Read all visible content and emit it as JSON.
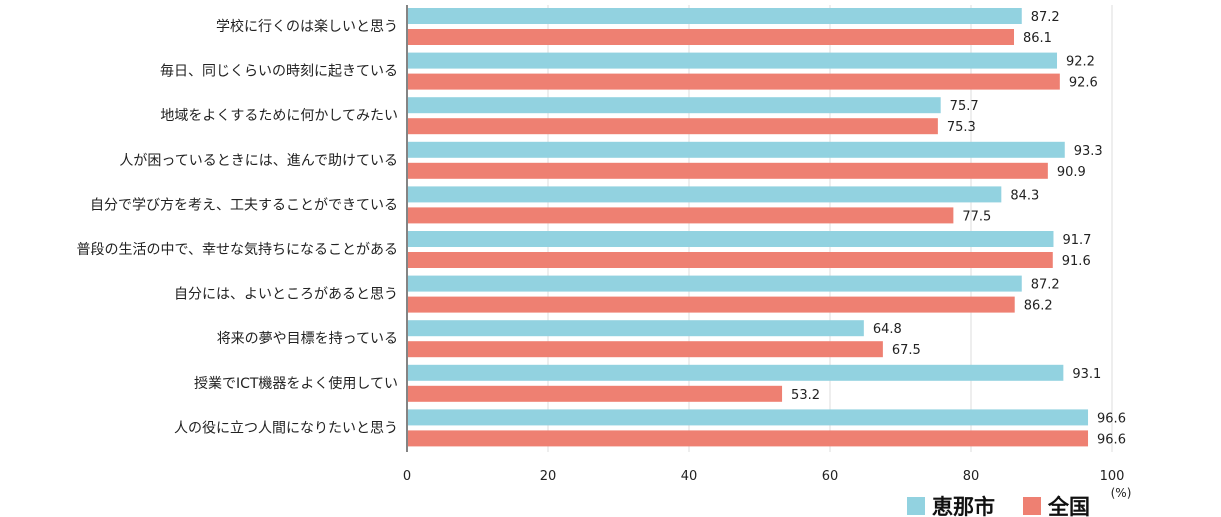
{
  "chart_data": {
    "type": "bar",
    "orientation": "horizontal",
    "categories": [
      "学校に行くのは楽しいと思う",
      "毎日、同じくらいの時刻に起きている",
      "地域をよくするために何かしてみたい",
      "人が困っているときには、進んで助けている",
      "自分で学び方を考え、工夫することができている",
      "普段の生活の中で、幸せな気持ちになることがある",
      "自分には、よいところがあると思う",
      "将来の夢や目標を持っている",
      "授業でICT機器をよく使用してい",
      "人の役に立つ人間になりたいと思う"
    ],
    "series": [
      {
        "name": "恵那市",
        "color": "#92d2e0",
        "values": [
          87.2,
          92.2,
          75.7,
          93.3,
          84.3,
          91.7,
          87.2,
          64.8,
          93.1,
          96.6
        ]
      },
      {
        "name": "全国",
        "color": "#ee8072",
        "values": [
          86.1,
          92.6,
          75.3,
          90.9,
          77.5,
          91.6,
          86.2,
          67.5,
          53.2,
          96.6
        ]
      }
    ],
    "x_ticks": [
      "0",
      "20",
      "40",
      "60",
      "80",
      "100"
    ],
    "xlim": [
      0,
      110
    ],
    "unit": "(%)",
    "grid": true,
    "legend_position": "bottom-right"
  }
}
